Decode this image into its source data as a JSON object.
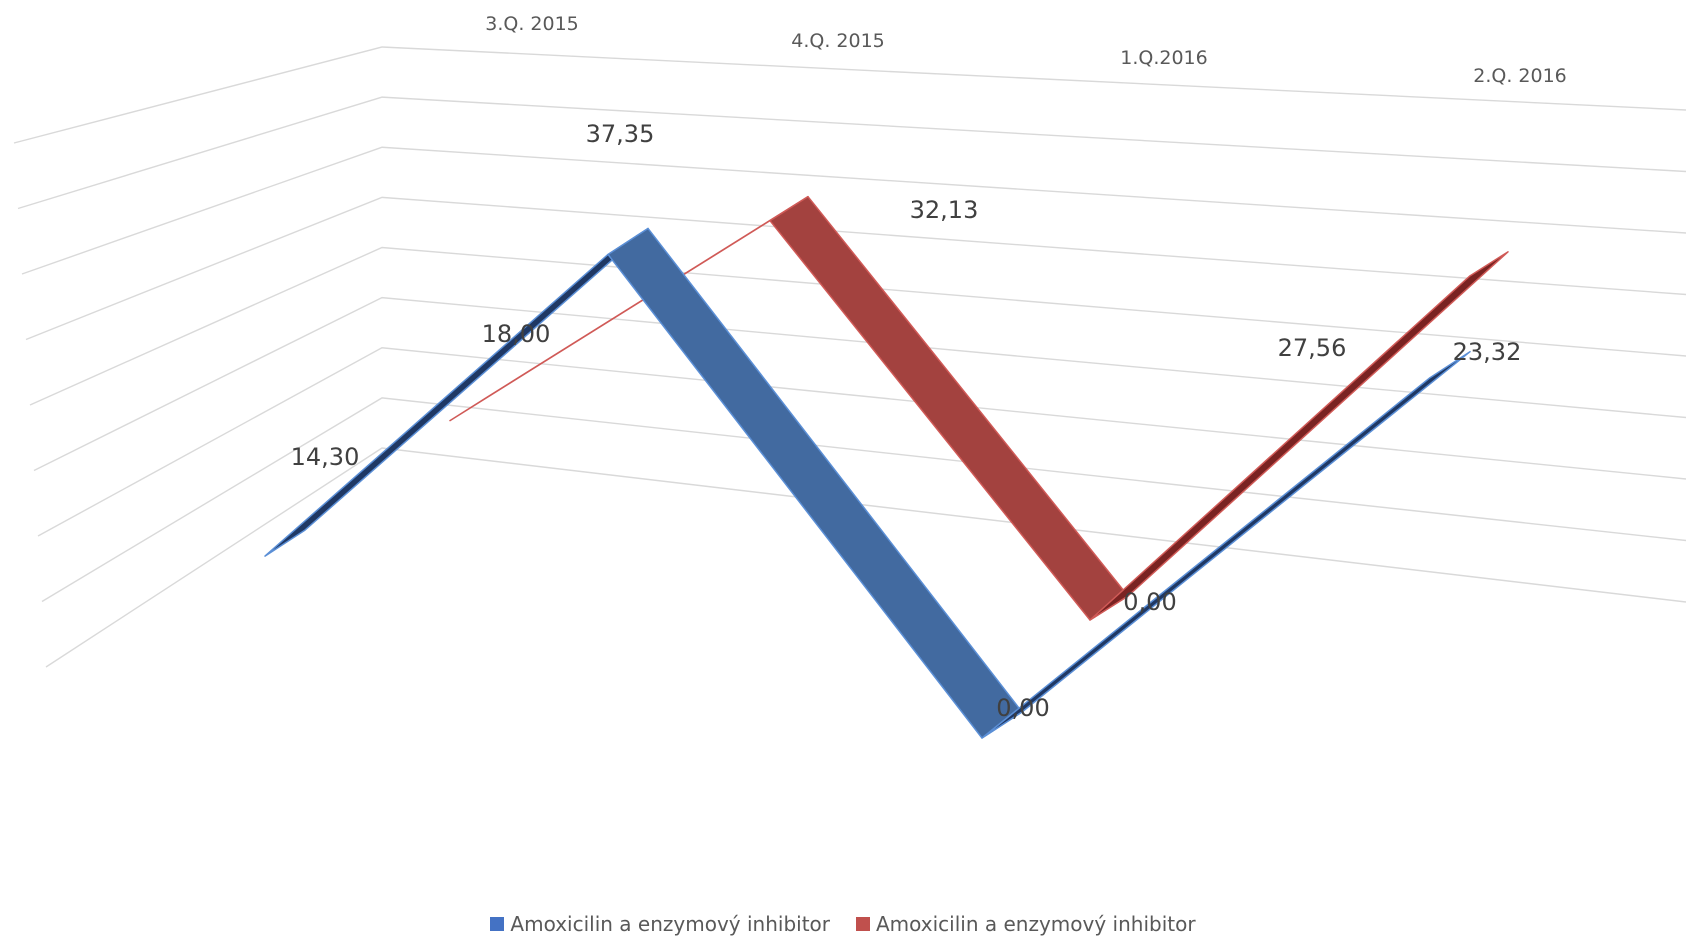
{
  "chart_data": {
    "type": "line",
    "style": "3d-ribbon",
    "categories": [
      "3.Q. 2015",
      "4.Q. 2015",
      "1.Q.2016",
      "2.Q. 2016"
    ],
    "series": [
      {
        "name": "Amoxicilin a enzymový inhibitor",
        "color": "#4472C4",
        "values": [
          14.3,
          37.35,
          0.0,
          27.56
        ],
        "labels": [
          "14,30",
          "37,35",
          "0,00",
          "27,56"
        ]
      },
      {
        "name": "Amoxicilin a enzymový inhibitor",
        "color": "#C0504D",
        "values": [
          18.0,
          32.13,
          0.0,
          23.32
        ],
        "labels": [
          "18,00",
          "32,13",
          "0,00",
          "23,32"
        ]
      }
    ],
    "grid": true,
    "legend_position": "bottom"
  }
}
